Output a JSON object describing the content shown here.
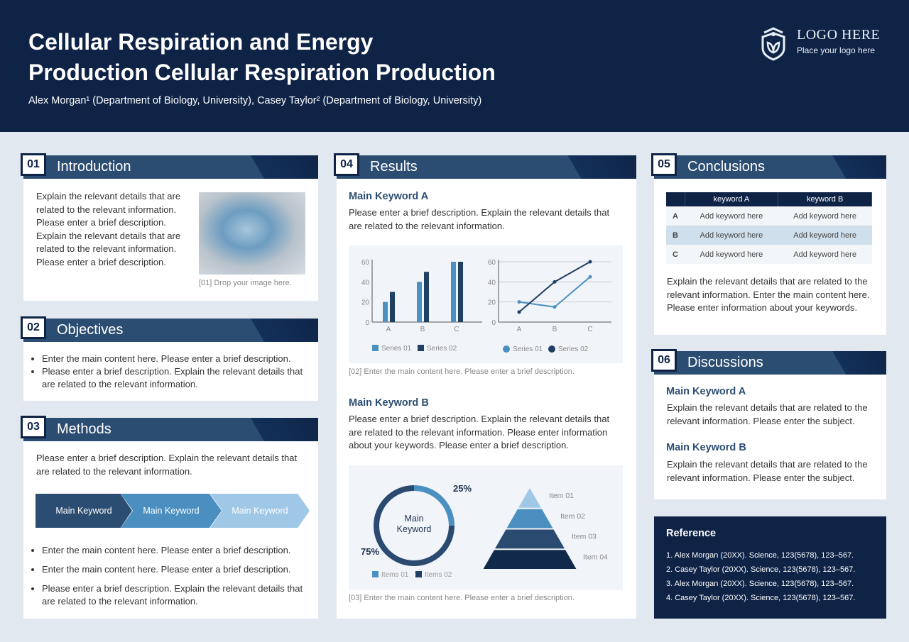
{
  "header": {
    "title_line1": "Cellular Respiration and Energy",
    "title_line2": "Production Cellular Respiration Production",
    "authors": "Alex Morgan¹ (Department of Biology, University), Casey Taylor² (Department of Biology, University)",
    "logo_title": "LOGO HERE",
    "logo_sub": "Place your logo here"
  },
  "intro": {
    "num": "01",
    "label": "Introduction",
    "text": "Explain the relevant details that are related to the relevant information. Please enter a brief description. Explain the relevant details that are related to the relevant information. Please enter a brief description.",
    "caption": "[01] Drop your image here."
  },
  "objectives": {
    "num": "02",
    "label": "Objectives",
    "items": [
      "Enter the main content here. Please enter a brief description.",
      "Please enter a brief description. Explain the relevant details that are related to the relevant information."
    ]
  },
  "methods": {
    "num": "03",
    "label": "Methods",
    "text": "Please enter a brief description. Explain the relevant details that are related to the relevant information.",
    "steps": [
      "Main Keyword",
      "Main Keyword",
      "Main Keyword"
    ],
    "items": [
      "Enter the main content here. Please enter a brief description.",
      "Enter the main content here. Please enter a brief description.",
      "Please enter a brief description. Explain the relevant details that are related to the relevant information."
    ]
  },
  "results": {
    "num": "04",
    "label": "Results",
    "kwA": "Main Keyword A",
    "textA": "Please enter a brief description. Explain the relevant details that are related to the relevant information.",
    "caption1": "[02] Enter the main content here. Please enter a brief description.",
    "kwB": "Main Keyword B",
    "textB": "Please enter a brief description. Explain the relevant details that are related to the relevant information. Please enter information about your keywords. Please enter a brief description.",
    "caption2": "[03] Enter the main content here. Please enter a brief description."
  },
  "conclusions": {
    "num": "05",
    "label": "Conclusions",
    "table": {
      "headers": [
        "",
        "keyword A",
        "keyword B"
      ],
      "rows": [
        [
          "A",
          "Add keyword here",
          "Add keyword here"
        ],
        [
          "B",
          "Add keyword here",
          "Add keyword here"
        ],
        [
          "C",
          "Add keyword here",
          "Add keyword here"
        ]
      ]
    },
    "text": "Explain the relevant details that are related to the relevant information. Enter the main content here. Please enter information about your keywords."
  },
  "discussions": {
    "num": "06",
    "label": "Discussions",
    "kwA": "Main Keyword A",
    "textA": "Explain the relevant details that are related to the relevant information. Please enter the subject.",
    "kwB": "Main Keyword B",
    "textB": "Explain the relevant details that are related to the relevant information. Please enter the subject."
  },
  "reference": {
    "title": "Reference",
    "items": [
      "1. Alex Morgan (20XX). Science, 123(5678), 123–567.",
      "2. Casey Taylor (20XX). Science, 123(5678), 123–567.",
      "3. Alex Morgan (20XX). Science, 123(5678), 123–567.",
      "4. Casey Taylor (20XX). Science, 123(5678), 123–567."
    ]
  },
  "colors": {
    "navy": "#0e2346",
    "blue": "#2c4d72",
    "series1": "#4a90c0",
    "series2": "#1f3f63",
    "light": "#9fc8e6"
  },
  "chart_data": [
    {
      "type": "bar",
      "categories": [
        "A",
        "B",
        "C"
      ],
      "series": [
        {
          "name": "Series 01",
          "values": [
            20,
            40,
            60
          ]
        },
        {
          "name": "Series 02",
          "values": [
            30,
            50,
            60
          ]
        }
      ],
      "ylim": [
        0,
        60
      ],
      "yticks": [
        0,
        20,
        40,
        60
      ],
      "legend": "bottom"
    },
    {
      "type": "line",
      "categories": [
        "A",
        "B",
        "C"
      ],
      "series": [
        {
          "name": "Series 01",
          "values": [
            20,
            15,
            45
          ]
        },
        {
          "name": "Series 02",
          "values": [
            10,
            40,
            60
          ]
        }
      ],
      "ylim": [
        0,
        60
      ],
      "yticks": [
        0,
        20,
        40,
        60
      ],
      "grid": true,
      "legend": "bottom"
    },
    {
      "type": "pie",
      "donut": true,
      "center_label": "Main Keyword",
      "slices": [
        {
          "name": "Items 01",
          "value": 25,
          "label": "25%"
        },
        {
          "name": "Items 02",
          "value": 75,
          "label": "75%"
        }
      ],
      "legend": "bottom"
    },
    {
      "type": "pyramid",
      "items": [
        "Item 01",
        "Item 02",
        "Item 03",
        "Item 04"
      ]
    }
  ]
}
